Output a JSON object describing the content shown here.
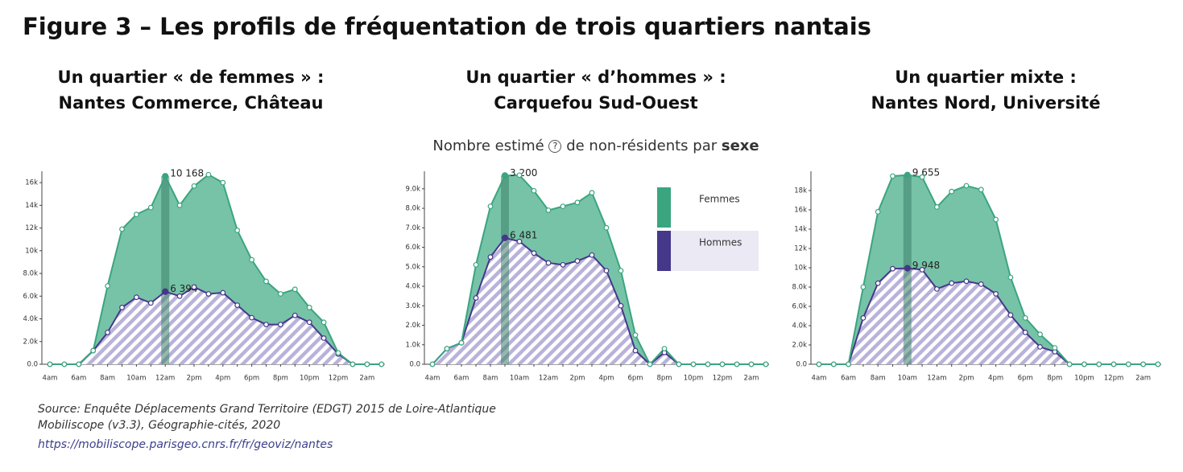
{
  "title": "Figure 3 – Les profils de fréquentation de trois quartiers nantais",
  "subtitle": {
    "before": "Nombre estimé",
    "help_icon": "?",
    "after": "de non-résidents par",
    "emphasis": "sexe"
  },
  "chart_data": [
    {
      "type": "area",
      "stacked": true,
      "legend": false,
      "title": [
        "Un quartier « de femmes » :",
        "Nantes Commerce, Château"
      ],
      "categories": [
        "4am",
        null,
        "6am",
        null,
        "8am",
        null,
        "10am",
        null,
        "12am",
        null,
        "2pm",
        null,
        "4pm",
        null,
        "6pm",
        null,
        "8pm",
        null,
        "10pm",
        null,
        "12pm",
        null,
        "2am",
        null
      ],
      "ylim": [
        0,
        17000
      ],
      "yticks": [
        {
          "value": 0,
          "label": "0.0"
        },
        {
          "value": 2000,
          "label": "2.0k"
        },
        {
          "value": 4000,
          "label": "4.0k"
        },
        {
          "value": 6000,
          "label": "6.0k"
        },
        {
          "value": 8000,
          "label": "8.0k"
        },
        {
          "value": 10000,
          "label": "10k"
        },
        {
          "value": 12000,
          "label": "12k"
        },
        {
          "value": 14000,
          "label": "14k"
        },
        {
          "value": 16000,
          "label": "16k"
        }
      ],
      "series": [
        {
          "color": "#45378a",
          "pattern": "hatch",
          "values": [
            0,
            0,
            0,
            1200,
            2800,
            5000,
            5900,
            5400,
            6394,
            6000,
            6800,
            6200,
            6300,
            5200,
            4100,
            3500,
            3500,
            4300,
            3700,
            2300,
            900,
            0,
            0,
            0
          ],
          "value_labels": [
            null,
            null,
            null,
            null,
            null,
            null,
            null,
            null,
            "6 394",
            null,
            null,
            null,
            null,
            null,
            null,
            null,
            null,
            null,
            null,
            null,
            null,
            null,
            null,
            null
          ]
        },
        {
          "color": "#3aa57f",
          "values": [
            0,
            0,
            0,
            0,
            4100,
            6900,
            7300,
            8400,
            10168,
            8000,
            8900,
            10500,
            9700,
            6600,
            5100,
            3800,
            2700,
            2300,
            1300,
            1400,
            100,
            0,
            0,
            0
          ],
          "value_labels": [
            null,
            null,
            null,
            null,
            null,
            null,
            null,
            null,
            "10 168",
            null,
            null,
            null,
            null,
            null,
            null,
            null,
            null,
            null,
            null,
            null,
            null,
            null,
            null,
            null
          ]
        }
      ]
    },
    {
      "type": "area",
      "stacked": true,
      "legend": true,
      "title": [
        "Un quartier « d’hommes » :",
        "Carquefou Sud-Ouest"
      ],
      "categories": [
        "4am",
        null,
        "6am",
        null,
        "8am",
        null,
        "10am",
        null,
        "12am",
        null,
        "2pm",
        null,
        "4pm",
        null,
        "6pm",
        null,
        "8pm",
        null,
        "10pm",
        null,
        "12pm",
        null,
        "2am",
        null
      ],
      "ylim": [
        0,
        9900
      ],
      "yticks": [
        {
          "value": 0,
          "label": "0.0"
        },
        {
          "value": 1000,
          "label": "1.0k"
        },
        {
          "value": 2000,
          "label": "2.0k"
        },
        {
          "value": 3000,
          "label": "3.0k"
        },
        {
          "value": 4000,
          "label": "4.0k"
        },
        {
          "value": 5000,
          "label": "5.0k"
        },
        {
          "value": 6000,
          "label": "6.0k"
        },
        {
          "value": 7000,
          "label": "7.0k"
        },
        {
          "value": 8000,
          "label": "8.0k"
        },
        {
          "value": 9000,
          "label": "9.0k"
        }
      ],
      "series": [
        {
          "name": "Hommes",
          "color": "#45378a",
          "pattern": "hatch",
          "values": [
            0,
            800,
            1100,
            3400,
            5500,
            6481,
            6300,
            5700,
            5200,
            5100,
            5300,
            5600,
            4800,
            3000,
            700,
            0,
            600,
            0,
            0,
            0,
            0,
            0,
            0,
            0
          ],
          "value_labels": [
            null,
            null,
            null,
            null,
            null,
            "6 481",
            null,
            null,
            null,
            null,
            null,
            null,
            null,
            null,
            null,
            null,
            null,
            null,
            null,
            null,
            null,
            null,
            null,
            null
          ]
        },
        {
          "name": "Femmes",
          "color": "#3aa57f",
          "values": [
            0,
            0,
            0,
            1700,
            2600,
            3200,
            3400,
            3200,
            2700,
            3000,
            3000,
            3200,
            2200,
            1800,
            800,
            0,
            200,
            0,
            0,
            0,
            0,
            0,
            0,
            0
          ],
          "value_labels": [
            null,
            null,
            null,
            null,
            null,
            "3 200",
            null,
            null,
            null,
            null,
            null,
            null,
            null,
            null,
            null,
            null,
            null,
            null,
            null,
            null,
            null,
            null,
            null,
            null
          ]
        }
      ]
    },
    {
      "type": "area",
      "stacked": true,
      "legend": false,
      "title": [
        "Un quartier mixte :",
        "Nantes Nord, Université"
      ],
      "categories": [
        "4am",
        null,
        "6am",
        null,
        "8am",
        null,
        "10am",
        null,
        "12am",
        null,
        "2pm",
        null,
        "4pm",
        null,
        "6pm",
        null,
        "8pm",
        null,
        "10pm",
        null,
        "12pm",
        null,
        "2am",
        null
      ],
      "ylim": [
        0,
        20000
      ],
      "yticks": [
        {
          "value": 0,
          "label": "0.0"
        },
        {
          "value": 2000,
          "label": "2.0k"
        },
        {
          "value": 4000,
          "label": "4.0k"
        },
        {
          "value": 6000,
          "label": "6.0k"
        },
        {
          "value": 8000,
          "label": "8.0k"
        },
        {
          "value": 10000,
          "label": "10k"
        },
        {
          "value": 12000,
          "label": "12k"
        },
        {
          "value": 14000,
          "label": "14k"
        },
        {
          "value": 16000,
          "label": "16k"
        },
        {
          "value": 18000,
          "label": "18k"
        }
      ],
      "series": [
        {
          "color": "#45378a",
          "pattern": "hatch",
          "values": [
            0,
            0,
            0,
            4800,
            8400,
            9900,
            9948,
            9800,
            7800,
            8400,
            8600,
            8300,
            7300,
            5100,
            3300,
            1800,
            1300,
            0,
            0,
            0,
            0,
            0,
            0,
            0
          ],
          "value_labels": [
            null,
            null,
            null,
            null,
            null,
            null,
            "9 948",
            null,
            null,
            null,
            null,
            null,
            null,
            null,
            null,
            null,
            null,
            null,
            null,
            null,
            null,
            null,
            null,
            null
          ]
        },
        {
          "color": "#3aa57f",
          "values": [
            0,
            0,
            0,
            3200,
            7400,
            9600,
            9655,
            9600,
            8500,
            9500,
            9900,
            9800,
            7700,
            3900,
            1500,
            1300,
            400,
            0,
            0,
            0,
            0,
            0,
            0,
            0
          ],
          "value_labels": [
            null,
            null,
            null,
            null,
            null,
            null,
            "9 655",
            null,
            null,
            null,
            null,
            null,
            null,
            null,
            null,
            null,
            null,
            null,
            null,
            null,
            null,
            null,
            null,
            null
          ]
        }
      ]
    }
  ],
  "source": [
    "Source: Enquête Déplacements Grand Territoire (EDGT) 2015 de Loire-Atlantique",
    "Mobiliscope (v3.3), Géographie-cités, 2020",
    "https://mobiliscope.parisgeo.cnrs.fr/fr/geoviz/nantes"
  ]
}
